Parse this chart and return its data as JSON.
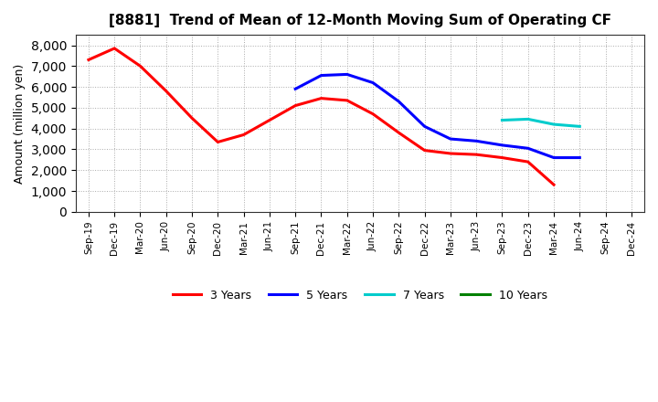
{
  "title": "[8881]  Trend of Mean of 12-Month Moving Sum of Operating CF",
  "ylabel": "Amount (million yen)",
  "background_color": "#ffffff",
  "grid_color": "#aaaaaa",
  "ylim": [
    0,
    8500
  ],
  "yticks": [
    0,
    1000,
    2000,
    3000,
    4000,
    5000,
    6000,
    7000,
    8000
  ],
  "x_labels": [
    "Sep-19",
    "Dec-19",
    "Mar-20",
    "Jun-20",
    "Sep-20",
    "Dec-20",
    "Mar-21",
    "Jun-21",
    "Sep-21",
    "Dec-21",
    "Mar-22",
    "Jun-22",
    "Sep-22",
    "Dec-22",
    "Mar-23",
    "Jun-23",
    "Sep-23",
    "Dec-23",
    "Mar-24",
    "Jun-24",
    "Sep-24",
    "Dec-24"
  ],
  "series": {
    "3 Years": {
      "color": "#ff0000",
      "data_x": [
        0,
        1,
        2,
        3,
        4,
        5,
        6,
        7,
        8,
        9,
        10,
        11,
        12,
        13,
        14,
        15,
        16,
        17,
        18
      ],
      "data_y": [
        7300,
        7850,
        7000,
        5800,
        4500,
        3350,
        3700,
        4400,
        5100,
        5450,
        5350,
        4700,
        3800,
        2950,
        2800,
        2750,
        2600,
        2400,
        1300
      ]
    },
    "5 Years": {
      "color": "#0000ff",
      "data_x": [
        8,
        9,
        10,
        11,
        12,
        13,
        14,
        15,
        16,
        17,
        18,
        19
      ],
      "data_y": [
        5900,
        6550,
        6600,
        6200,
        5300,
        4100,
        3500,
        3400,
        3200,
        3050,
        2600,
        2600
      ]
    },
    "7 Years": {
      "color": "#00cccc",
      "data_x": [
        16,
        17,
        18,
        19
      ],
      "data_y": [
        4400,
        4450,
        4200,
        4100
      ]
    },
    "10 Years": {
      "color": "#008000",
      "data_x": [],
      "data_y": []
    }
  },
  "legend_labels": [
    "3 Years",
    "5 Years",
    "7 Years",
    "10 Years"
  ],
  "legend_colors": [
    "#ff0000",
    "#0000ff",
    "#00cccc",
    "#008000"
  ]
}
